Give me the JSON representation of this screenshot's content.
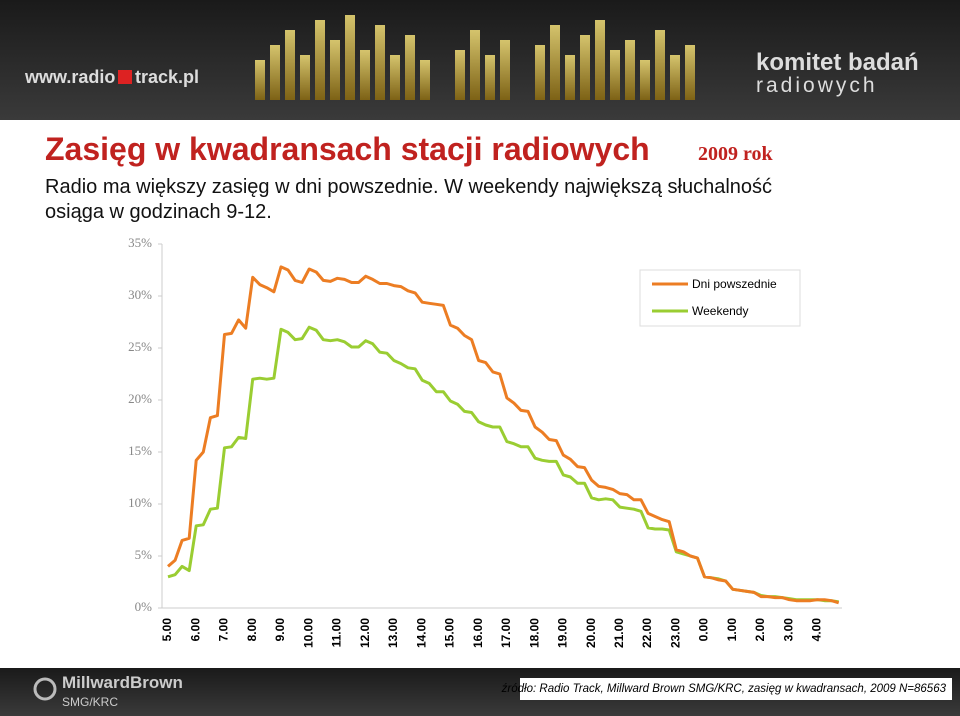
{
  "header": {
    "logo_left": "www.radio",
    "logo_left_2": "track.pl",
    "logo_right": "komitet badań",
    "logo_right_2": "radiowych"
  },
  "chart_data": {
    "type": "line",
    "title": "Zasięg w kwadransach stacji radiowych",
    "title_note": "2009 rok",
    "subtitle": [
      "Radio ma większy zasięg w dni powszednie. W weekendy największą słuchalność",
      "osiąga w godzinach 9-12."
    ],
    "categories": [
      "5.00",
      null,
      null,
      null,
      "6.00",
      null,
      null,
      null,
      "7.00",
      null,
      null,
      null,
      "8.00",
      null,
      null,
      null,
      "9.00",
      null,
      null,
      null,
      "10.00",
      null,
      null,
      null,
      "11.00",
      null,
      null,
      null,
      "12.00",
      null,
      null,
      null,
      "13.00",
      null,
      null,
      null,
      "14.00",
      null,
      null,
      null,
      "15.00",
      null,
      null,
      null,
      "16.00",
      null,
      null,
      null,
      "17.00",
      null,
      null,
      null,
      "18.00",
      null,
      null,
      null,
      "19.00",
      null,
      null,
      null,
      "20.00",
      null,
      null,
      null,
      "21.00",
      null,
      null,
      null,
      "22.00",
      null,
      null,
      null,
      "23.00",
      null,
      null,
      null,
      "0.00",
      null,
      null,
      null,
      "1.00",
      null,
      null,
      null,
      "2.00",
      null,
      null,
      null,
      "3.00",
      null,
      null,
      null,
      "4.00",
      null,
      null,
      null
    ],
    "series": [
      {
        "name": "Dni powszednie",
        "color": "#ec7d23",
        "values": [
          4.0,
          4.6,
          6.5,
          6.7,
          14.2,
          15.0,
          18.3,
          18.5,
          26.3,
          26.4,
          27.7,
          26.9,
          31.8,
          31.1,
          30.8,
          30.4,
          32.8,
          32.5,
          31.5,
          31.3,
          32.6,
          32.3,
          31.5,
          31.4,
          31.7,
          31.6,
          31.3,
          31.3,
          31.9,
          31.6,
          31.2,
          31.2,
          31.0,
          30.9,
          30.5,
          30.3,
          29.4,
          29.3,
          29.2,
          29.1,
          27.2,
          26.9,
          26.2,
          25.8,
          23.8,
          23.6,
          22.7,
          22.5,
          20.2,
          19.7,
          19.0,
          18.9,
          17.4,
          16.9,
          16.2,
          16.1,
          14.7,
          14.3,
          13.6,
          13.5,
          12.3,
          11.7,
          11.6,
          11.4,
          11.0,
          10.9,
          10.4,
          10.4,
          9.1,
          8.8,
          8.5,
          8.3,
          5.6,
          5.4,
          5.0,
          4.8,
          3.0,
          2.9,
          2.7,
          2.6,
          1.8,
          1.7,
          1.6,
          1.5,
          1.1,
          1.1,
          1.0,
          1.0,
          0.8,
          0.7,
          0.7,
          0.7,
          0.8,
          0.8,
          0.7,
          0.5
        ]
      },
      {
        "name": "Weekendy",
        "color": "#9acd32",
        "values": [
          3.0,
          3.2,
          4.0,
          3.6,
          7.9,
          8.0,
          9.5,
          9.6,
          15.4,
          15.5,
          16.4,
          16.3,
          22.0,
          22.1,
          22.0,
          22.1,
          26.8,
          26.5,
          25.8,
          25.9,
          27.0,
          26.7,
          25.8,
          25.7,
          25.8,
          25.6,
          25.1,
          25.1,
          25.7,
          25.4,
          24.6,
          24.5,
          23.8,
          23.5,
          23.1,
          23.0,
          21.9,
          21.6,
          20.8,
          20.8,
          19.9,
          19.6,
          18.9,
          18.8,
          17.9,
          17.6,
          17.4,
          17.4,
          16.0,
          15.8,
          15.5,
          15.5,
          14.4,
          14.2,
          14.1,
          14.1,
          12.8,
          12.6,
          12.0,
          12.0,
          10.6,
          10.4,
          10.5,
          10.4,
          9.7,
          9.6,
          9.5,
          9.3,
          7.7,
          7.6,
          7.6,
          7.5,
          5.4,
          5.2,
          5.0,
          4.8,
          3.0,
          2.9,
          2.8,
          2.6,
          1.8,
          1.7,
          1.6,
          1.5,
          1.2,
          1.1,
          1.1,
          1.0,
          0.9,
          0.8,
          0.8,
          0.8,
          0.8,
          0.7,
          0.7,
          0.6
        ]
      }
    ],
    "ylim": [
      0,
      35
    ],
    "yticks": [
      {
        "value": 0,
        "label": "0%"
      },
      {
        "value": 5,
        "label": "5%"
      },
      {
        "value": 10,
        "label": "10%"
      },
      {
        "value": 15,
        "label": "15%"
      },
      {
        "value": 20,
        "label": "20%"
      },
      {
        "value": 25,
        "label": "25%"
      },
      {
        "value": 30,
        "label": "30%"
      },
      {
        "value": 35,
        "label": "35%"
      }
    ],
    "legend": "upper right"
  },
  "footer": {
    "logo": "MillwardBrown",
    "logo_2": "SMG/KRC",
    "source": "źródło: Radio Track, Millward Brown SMG/KRC, zasięg w kwadransach, 2009 N=86563"
  }
}
